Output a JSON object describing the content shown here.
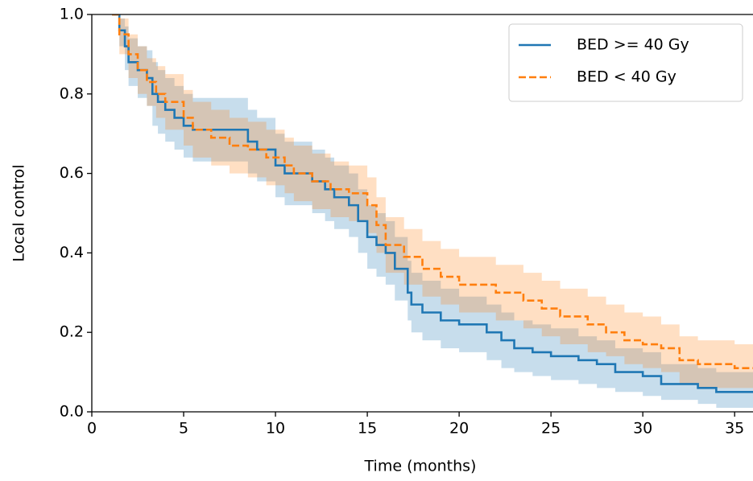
{
  "chart_data": {
    "type": "step",
    "xlabel": "Time (months)",
    "ylabel": "Local control",
    "xlim": [
      0,
      36
    ],
    "ylim": [
      0,
      1
    ],
    "xticks": [
      0,
      5,
      10,
      15,
      20,
      25,
      30,
      35
    ],
    "yticks": [
      {
        "value": 0,
        "label": "0.0"
      },
      0.2,
      0.4,
      0.6,
      0.8,
      {
        "value": 1,
        "label": "1.0"
      }
    ],
    "grid": false,
    "legend": "upper right",
    "series": [
      {
        "name": "BED >= 40 Gy",
        "color": "#1f77b4",
        "linestyle": "solid",
        "x": [
          1.1,
          1.5,
          1.8,
          2.0,
          2.5,
          3.0,
          3.3,
          3.6,
          4.0,
          4.5,
          5.0,
          5.5,
          8.5,
          9.0,
          10.0,
          10.5,
          12.0,
          12.7,
          13.2,
          14.0,
          14.5,
          15.0,
          15.5,
          16.0,
          16.5,
          17.2,
          17.4,
          18.0,
          19.0,
          20.0,
          21.5,
          22.3,
          23.0,
          24.0,
          25.0,
          26.5,
          27.5,
          28.5,
          30.0,
          31.0,
          33.0,
          34.0
        ],
        "values": [
          1.0,
          0.96,
          0.92,
          0.88,
          0.86,
          0.84,
          0.8,
          0.78,
          0.76,
          0.74,
          0.72,
          0.71,
          0.68,
          0.66,
          0.62,
          0.6,
          0.58,
          0.56,
          0.54,
          0.52,
          0.48,
          0.44,
          0.42,
          0.4,
          0.36,
          0.3,
          0.27,
          0.25,
          0.23,
          0.22,
          0.2,
          0.18,
          0.16,
          0.15,
          0.14,
          0.13,
          0.12,
          0.1,
          0.09,
          0.07,
          0.06,
          0.05
        ],
        "upper": [
          1.0,
          0.99,
          0.97,
          0.94,
          0.92,
          0.91,
          0.88,
          0.86,
          0.84,
          0.82,
          0.8,
          0.79,
          0.76,
          0.74,
          0.7,
          0.68,
          0.66,
          0.64,
          0.62,
          0.6,
          0.56,
          0.52,
          0.5,
          0.48,
          0.44,
          0.38,
          0.35,
          0.33,
          0.31,
          0.29,
          0.27,
          0.25,
          0.23,
          0.22,
          0.21,
          0.19,
          0.18,
          0.16,
          0.15,
          0.12,
          0.11,
          0.1
        ],
        "lower": [
          1.0,
          0.92,
          0.86,
          0.82,
          0.79,
          0.77,
          0.72,
          0.7,
          0.68,
          0.66,
          0.64,
          0.63,
          0.6,
          0.58,
          0.54,
          0.52,
          0.5,
          0.48,
          0.46,
          0.44,
          0.4,
          0.36,
          0.34,
          0.32,
          0.28,
          0.23,
          0.2,
          0.18,
          0.16,
          0.15,
          0.13,
          0.11,
          0.1,
          0.09,
          0.08,
          0.07,
          0.06,
          0.05,
          0.04,
          0.03,
          0.02,
          0.01
        ]
      },
      {
        "name": "BED < 40 Gy",
        "color": "#ff7f0e",
        "linestyle": "dashed",
        "x": [
          1.1,
          1.5,
          2.0,
          2.5,
          3.0,
          3.5,
          4.0,
          5.0,
          5.5,
          6.5,
          7.5,
          8.5,
          9.5,
          10.5,
          11.0,
          12.0,
          13.0,
          14.0,
          15.0,
          15.5,
          16.0,
          17.0,
          18.0,
          19.0,
          20.0,
          22.0,
          23.5,
          24.5,
          25.5,
          27.0,
          28.0,
          29.0,
          30.0,
          31.0,
          32.0,
          33.0,
          35.0
        ],
        "values": [
          1.0,
          0.95,
          0.9,
          0.86,
          0.83,
          0.8,
          0.78,
          0.74,
          0.71,
          0.69,
          0.67,
          0.66,
          0.64,
          0.62,
          0.6,
          0.58,
          0.56,
          0.55,
          0.52,
          0.47,
          0.42,
          0.39,
          0.36,
          0.34,
          0.32,
          0.3,
          0.28,
          0.26,
          0.24,
          0.22,
          0.2,
          0.18,
          0.17,
          0.16,
          0.13,
          0.12,
          0.11
        ],
        "upper": [
          1.0,
          0.99,
          0.95,
          0.92,
          0.89,
          0.87,
          0.85,
          0.81,
          0.78,
          0.76,
          0.74,
          0.73,
          0.71,
          0.69,
          0.67,
          0.65,
          0.63,
          0.62,
          0.59,
          0.54,
          0.49,
          0.46,
          0.43,
          0.41,
          0.39,
          0.37,
          0.35,
          0.33,
          0.31,
          0.29,
          0.27,
          0.25,
          0.24,
          0.22,
          0.19,
          0.18,
          0.17
        ],
        "lower": [
          1.0,
          0.9,
          0.84,
          0.8,
          0.77,
          0.74,
          0.71,
          0.67,
          0.64,
          0.62,
          0.6,
          0.59,
          0.57,
          0.55,
          0.53,
          0.51,
          0.49,
          0.48,
          0.45,
          0.4,
          0.35,
          0.32,
          0.29,
          0.27,
          0.25,
          0.23,
          0.21,
          0.19,
          0.17,
          0.15,
          0.14,
          0.12,
          0.11,
          0.1,
          0.07,
          0.06,
          0.06
        ]
      }
    ]
  }
}
